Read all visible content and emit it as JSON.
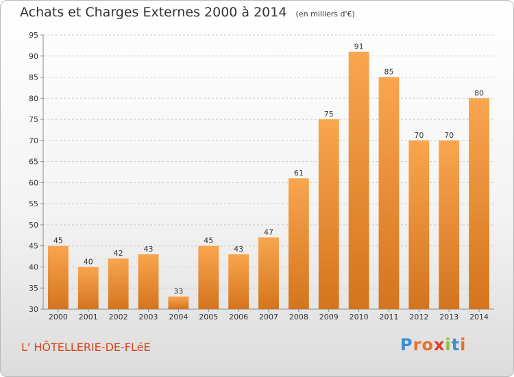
{
  "header": {
    "title": "Achats et Charges Externes 2000 à 2014",
    "unit": "(en milliers d'€)"
  },
  "footer": {
    "city": "L' HÔTELLERIE-DE-FLéE",
    "logo": {
      "text": "Proxiti",
      "letter_colors": [
        "#3b8fd0",
        "#e8702a",
        "#e8702a",
        "#e23b2b",
        "#8bbf3a",
        "#3b8fd0",
        "#e8702a"
      ]
    }
  },
  "chart_data": {
    "type": "bar",
    "categories": [
      "2000",
      "2001",
      "2002",
      "2003",
      "2004",
      "2005",
      "2006",
      "2007",
      "2008",
      "2009",
      "2010",
      "2011",
      "2012",
      "2013",
      "2014"
    ],
    "values": [
      45,
      40,
      42,
      43,
      33,
      45,
      43,
      47,
      61,
      75,
      91,
      85,
      70,
      70,
      80
    ],
    "data_labels": [
      "45",
      "40",
      "42",
      "43",
      "33",
      "45",
      "43",
      "47",
      "61",
      "75",
      "91",
      "85",
      "70",
      "70",
      "80"
    ],
    "ylim": [
      30,
      95
    ],
    "yticks": [
      30,
      35,
      40,
      45,
      50,
      55,
      60,
      65,
      70,
      75,
      80,
      85,
      90,
      95
    ],
    "grid": true,
    "colors": {
      "bar_top": "#f9a64e",
      "bar_bottom": "#d4741e",
      "grid": "#cccccc",
      "axis": "#888888",
      "text": "#333333"
    }
  }
}
